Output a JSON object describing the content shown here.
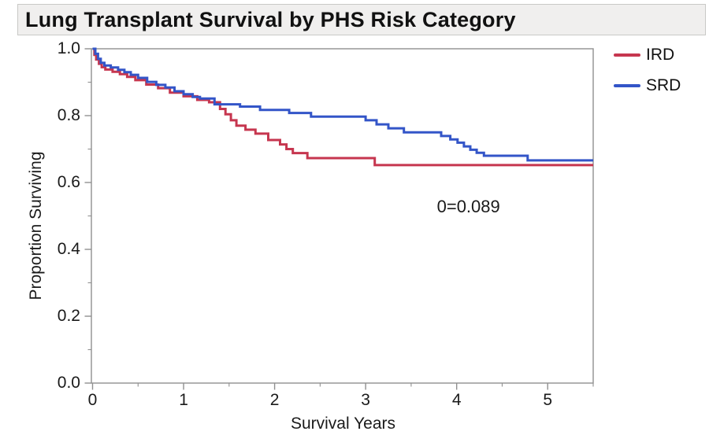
{
  "title": "Lung Transplant Survival by PHS Risk Category",
  "chart_data": {
    "type": "line",
    "subtype": "kaplan-meier-step",
    "title": "Lung Transplant Survival by PHS Risk Category",
    "xlabel": "Survival Years",
    "ylabel": "Proportion Surviving",
    "xlim": [
      0,
      5.5
    ],
    "ylim": [
      0,
      1.0
    ],
    "xticks": [
      0,
      1,
      2,
      3,
      4,
      5
    ],
    "xtick_labels": [
      "0",
      "1",
      "2",
      "3",
      "4",
      "5"
    ],
    "xticks_minor": [
      0.5,
      1.5,
      2.5,
      3.5,
      4.5,
      5.5
    ],
    "yticks": [
      0.0,
      0.2,
      0.4,
      0.6,
      0.8,
      1.0
    ],
    "ytick_labels": [
      "0.0",
      "0.2",
      "0.4",
      "0.6",
      "0.8",
      "1.0"
    ],
    "yticks_minor": [
      0.1,
      0.3,
      0.5,
      0.7,
      0.9
    ],
    "grid": false,
    "frame_color": "#909090",
    "legend_position": "outside-top-right",
    "annotation": {
      "text": "0=0.089",
      "x": 4.13,
      "y": 0.53
    },
    "series": [
      {
        "name": "IRD",
        "color": "#C6364F",
        "points": [
          [
            0,
            1.0
          ],
          [
            0.02,
            0.982
          ],
          [
            0.04,
            0.968
          ],
          [
            0.07,
            0.955
          ],
          [
            0.1,
            0.945
          ],
          [
            0.14,
            0.938
          ],
          [
            0.22,
            0.931
          ],
          [
            0.3,
            0.924
          ],
          [
            0.38,
            0.916
          ],
          [
            0.47,
            0.906
          ],
          [
            0.59,
            0.893
          ],
          [
            0.72,
            0.882
          ],
          [
            0.85,
            0.869
          ],
          [
            1.0,
            0.858
          ],
          [
            1.15,
            0.847
          ],
          [
            1.28,
            0.84
          ],
          [
            1.4,
            0.82
          ],
          [
            1.46,
            0.804
          ],
          [
            1.52,
            0.786
          ],
          [
            1.58,
            0.77
          ],
          [
            1.68,
            0.758
          ],
          [
            1.79,
            0.746
          ],
          [
            1.93,
            0.727
          ],
          [
            2.06,
            0.714
          ],
          [
            2.13,
            0.7
          ],
          [
            2.2,
            0.688
          ],
          [
            2.36,
            0.673
          ],
          [
            3.1,
            0.652
          ]
        ]
      },
      {
        "name": "SRD",
        "color": "#3355C8",
        "points": [
          [
            0,
            1.0
          ],
          [
            0.03,
            0.985
          ],
          [
            0.06,
            0.97
          ],
          [
            0.09,
            0.958
          ],
          [
            0.13,
            0.95
          ],
          [
            0.2,
            0.944
          ],
          [
            0.28,
            0.937
          ],
          [
            0.35,
            0.93
          ],
          [
            0.42,
            0.922
          ],
          [
            0.5,
            0.913
          ],
          [
            0.6,
            0.901
          ],
          [
            0.7,
            0.892
          ],
          [
            0.8,
            0.884
          ],
          [
            0.9,
            0.873
          ],
          [
            1.0,
            0.864
          ],
          [
            1.1,
            0.856
          ],
          [
            1.18,
            0.851
          ],
          [
            1.34,
            0.834
          ],
          [
            1.62,
            0.827
          ],
          [
            1.84,
            0.817
          ],
          [
            2.16,
            0.808
          ],
          [
            2.4,
            0.797
          ],
          [
            3.0,
            0.786
          ],
          [
            3.12,
            0.774
          ],
          [
            3.25,
            0.762
          ],
          [
            3.42,
            0.75
          ],
          [
            3.83,
            0.739
          ],
          [
            3.93,
            0.729
          ],
          [
            4.01,
            0.719
          ],
          [
            4.08,
            0.708
          ],
          [
            4.15,
            0.698
          ],
          [
            4.22,
            0.689
          ],
          [
            4.3,
            0.68
          ],
          [
            4.78,
            0.666
          ]
        ]
      }
    ]
  }
}
